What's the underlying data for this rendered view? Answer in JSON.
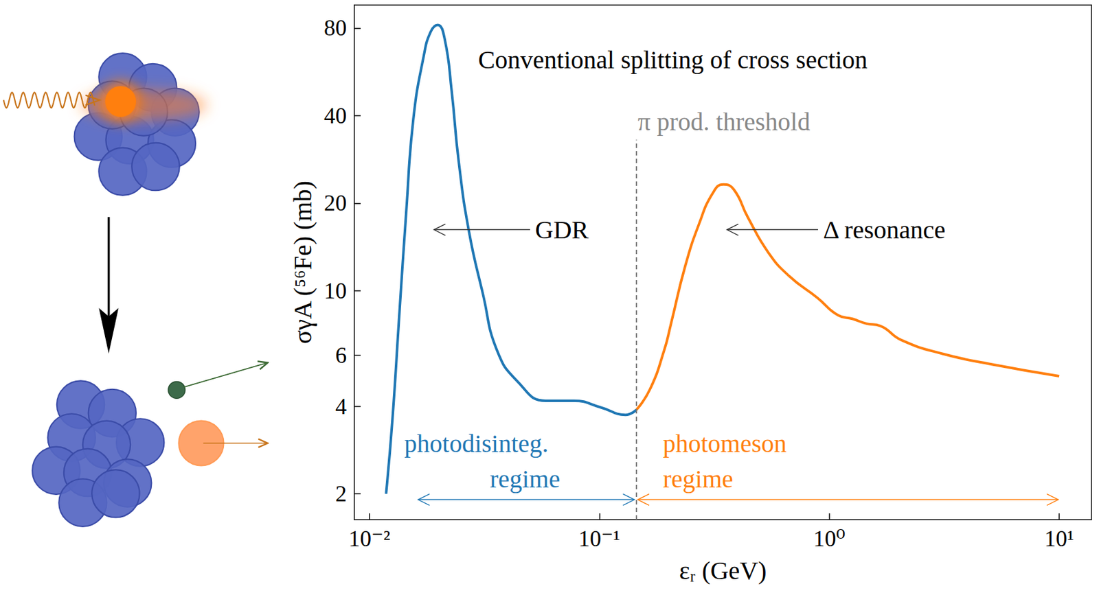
{
  "chart_data": {
    "type": "line",
    "x_label": "εᵣ (GeV)",
    "y_label": "σγA (⁵⁶Fe) (mb)",
    "log": true,
    "grid": false,
    "xlim": [
      0.0086,
      13.8
    ],
    "ylim": [
      1.63,
      96
    ],
    "xticks": [
      {
        "value": 0.01,
        "label": "10⁻²"
      },
      {
        "value": 0.1,
        "label": "10⁻¹"
      },
      {
        "value": 1,
        "label": "10⁰"
      },
      {
        "value": 10,
        "label": "10¹"
      }
    ],
    "yticks": [
      2,
      4,
      6,
      10,
      20,
      40,
      80
    ],
    "series": [
      {
        "color": "#1f77b4",
        "x": [
          0.01182,
          0.01259,
          0.01349,
          0.01448,
          0.01553,
          0.01723,
          0.01848,
          0.01982,
          0.02125,
          0.0228,
          0.02445,
          0.0271,
          0.0312,
          0.0359,
          0.0442,
          0.0585,
          0.0773,
          0.102,
          0.13,
          0.145
        ],
        "values": [
          2.0,
          3.58,
          8.22,
          18.9,
          38.9,
          64,
          77.7,
          82,
          73.5,
          48.5,
          27.9,
          16,
          9.71,
          6.23,
          4.86,
          4.18,
          4.18,
          3.96,
          3.74,
          3.89
        ]
      },
      {
        "color": "#ff7f0e",
        "x": [
          0.145,
          0.1663,
          0.1914,
          0.205,
          0.236,
          0.271,
          0.312,
          0.346,
          0.384,
          0.442,
          0.544,
          0.671,
          0.887,
          1.094,
          1.26,
          1.45,
          1.66,
          2.05,
          3.12,
          5.08,
          10
        ],
        "values": [
          3.89,
          4.59,
          6.23,
          7.7,
          12.1,
          16.9,
          21.7,
          23.2,
          22.3,
          17.9,
          13.5,
          11.2,
          9.45,
          8.22,
          8.0,
          7.7,
          7.57,
          6.77,
          6.06,
          5.58,
          5.08
        ]
      }
    ],
    "annotations": [
      {
        "text": "Conventional splitting of cross section",
        "x": 0.0297,
        "y": 62.3,
        "color": "#000000"
      },
      {
        "text": "π prod. threshold",
        "x": 0.147,
        "y": 38.2,
        "color": "#888888",
        "vline": {
          "x": 0.145,
          "top": 33
        }
      },
      {
        "text": "GDR",
        "x": 0.0526,
        "y": 16.2,
        "color": "#000000",
        "arrow_to": {
          "x": 0.0191,
          "y": 16.2
        }
      },
      {
        "text": "Δ resonance",
        "x": 0.94,
        "y": 16.2,
        "color": "#000000",
        "arrow_to": {
          "x": 0.359,
          "y": 16.2
        }
      },
      {
        "text": "photodisinteg.",
        "x": 0.01419,
        "y": 2.98,
        "color": "#1f77b4"
      },
      {
        "text": "regime",
        "x": 0.0334,
        "y": 2.25,
        "color": "#1f77b4"
      },
      {
        "text": "photomeson",
        "x": 0.189,
        "y": 2.98,
        "color": "#ff7f0e"
      },
      {
        "text": "regime",
        "x": 0.189,
        "y": 2.25,
        "color": "#ff7f0e"
      }
    ],
    "ranges": [
      {
        "from": 0.0163,
        "to": 0.142,
        "y": 1.91,
        "color": "#1f77b4"
      },
      {
        "from": 0.147,
        "to": 9.9,
        "y": 1.91,
        "color": "#ff7f0e"
      }
    ]
  }
}
